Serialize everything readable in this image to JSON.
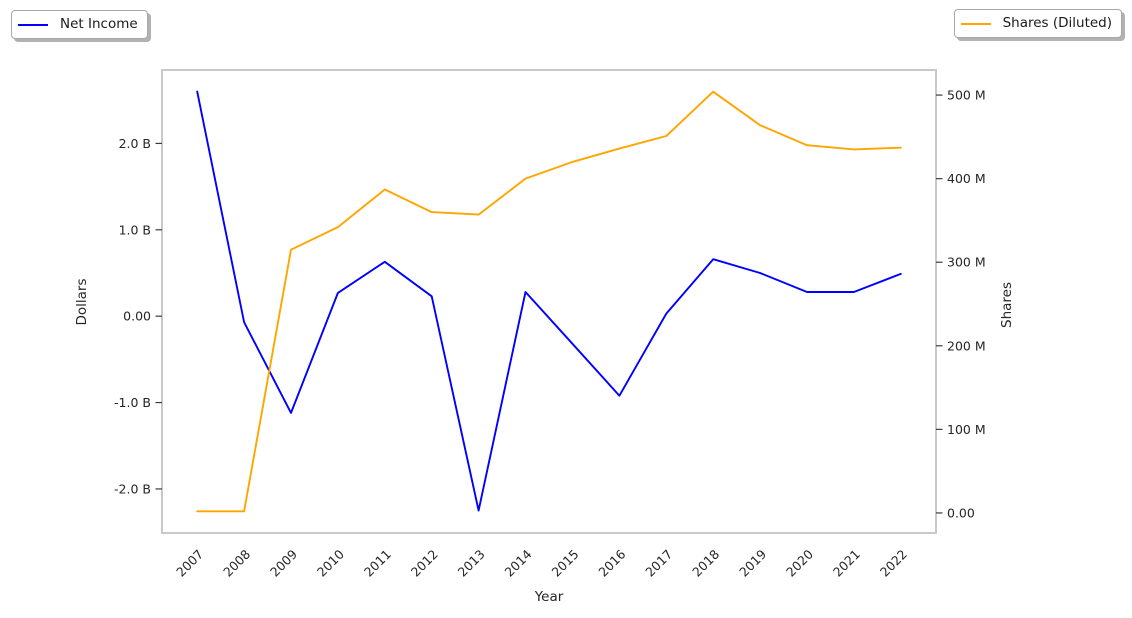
{
  "legend_left": {
    "label": "Net Income"
  },
  "legend_right": {
    "label": "Shares (Diluted)"
  },
  "colors": {
    "net_income_line": "#0000ff",
    "shares_line": "#ffa500",
    "spine": "#c9c9c9",
    "tick_mark": "#3b3b3b",
    "text": "#262626"
  },
  "chart_data": {
    "type": "line",
    "title": "",
    "xlabel": "Year",
    "ylabel_left": "Dollars",
    "ylabel_right": "Shares",
    "grid": false,
    "legend_positions": [
      "top-left",
      "top-right"
    ],
    "x": [
      2007,
      2008,
      2009,
      2010,
      2011,
      2012,
      2013,
      2014,
      2015,
      2016,
      2017,
      2018,
      2019,
      2020,
      2021,
      2022
    ],
    "series": [
      {
        "name": "Net Income",
        "axis": "left",
        "color": "#0000ff",
        "unit": "billions of dollars",
        "values": [
          2.6,
          -0.07,
          -1.12,
          0.27,
          0.63,
          0.23,
          -2.25,
          0.28,
          -0.32,
          -0.92,
          0.03,
          0.66,
          0.5,
          0.28,
          0.28,
          0.49
        ]
      },
      {
        "name": "Shares (Diluted)",
        "axis": "right",
        "color": "#ffa500",
        "unit": "millions of shares",
        "values": [
          2,
          2,
          315,
          342,
          387,
          360,
          357,
          400,
          420,
          436,
          451,
          504,
          464,
          440,
          435,
          437
        ]
      }
    ],
    "xlim": [
      2006.25,
      2022.75
    ],
    "ylim_left": [
      -2.51,
      2.85
    ],
    "ylim_right": [
      -24,
      530
    ],
    "yticks_left": {
      "values": [
        2.0,
        1.0,
        0.0,
        -1.0,
        -2.0
      ],
      "labels": [
        "2.0 B",
        "1.0 B",
        "0.00",
        "-1.0 B",
        "-2.0 B"
      ]
    },
    "yticks_right": {
      "values": [
        500,
        400,
        300,
        200,
        100,
        0
      ],
      "labels": [
        "500 M",
        "400 M",
        "300 M",
        "200 M",
        "100 M",
        "0.00"
      ]
    },
    "xticks": {
      "values": [
        2007,
        2008,
        2009,
        2010,
        2011,
        2012,
        2013,
        2014,
        2015,
        2016,
        2017,
        2018,
        2019,
        2020,
        2021,
        2022
      ],
      "labels": [
        "2007",
        "2008",
        "2009",
        "2010",
        "2011",
        "2012",
        "2013",
        "2014",
        "2015",
        "2016",
        "2017",
        "2018",
        "2019",
        "2020",
        "2021",
        "2022"
      ],
      "rotation_deg": 45
    }
  }
}
